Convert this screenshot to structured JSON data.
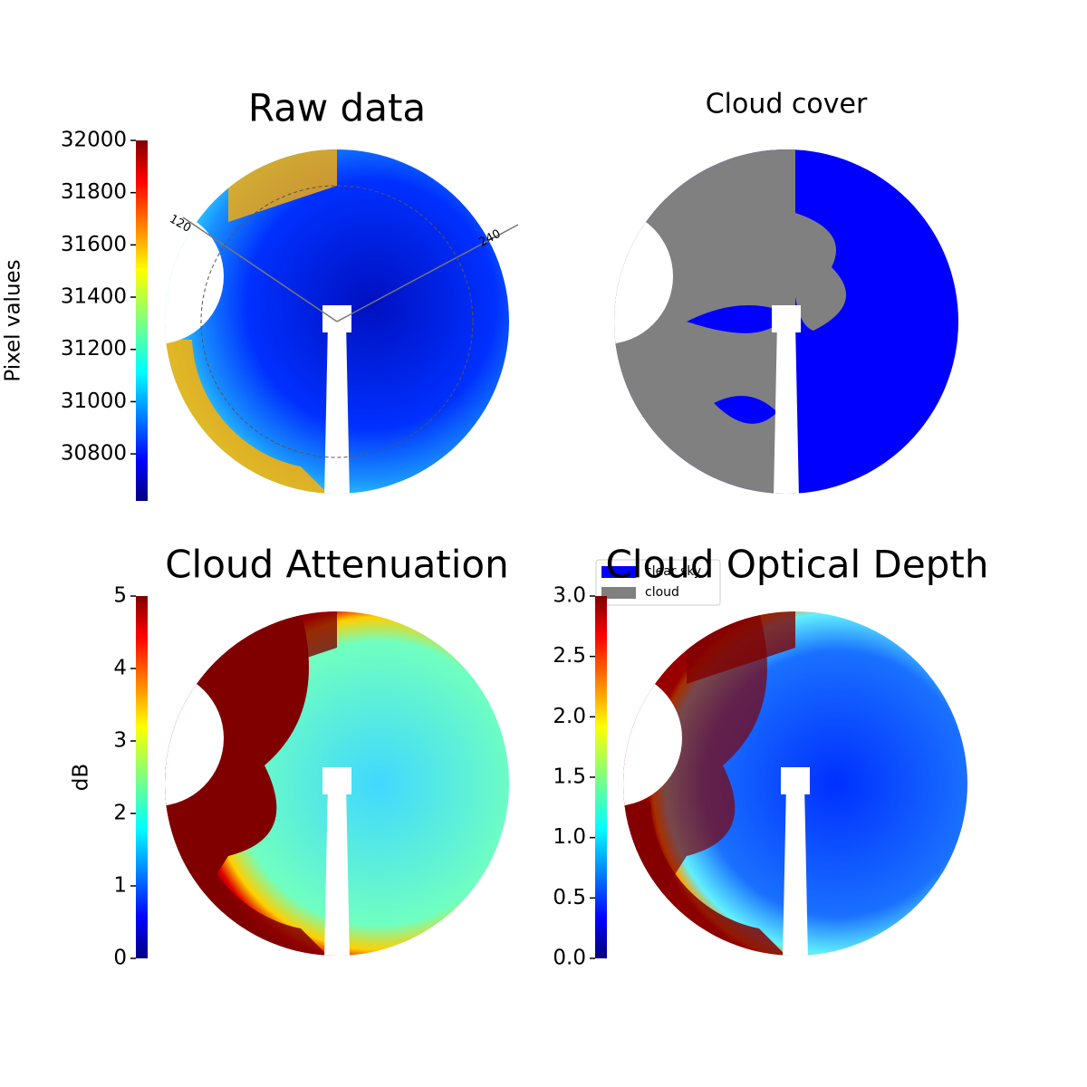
{
  "chart_data": [
    {
      "type": "image",
      "title": "Raw data",
      "title_size": "large",
      "annotations": [
        "120",
        "240"
      ],
      "colorbar": {
        "label": "Pixel values",
        "colormap": "jet",
        "lim": [
          30620,
          32000
        ],
        "ticks": [
          30800,
          31000,
          31200,
          31400,
          31600,
          31800,
          32000
        ]
      }
    },
    {
      "type": "image",
      "title": "Cloud cover",
      "title_size": "small",
      "series": [
        {
          "name": "clear sky",
          "color": "#0000ff"
        },
        {
          "name": "cloud",
          "color": "#808080"
        }
      ]
    },
    {
      "type": "image",
      "title": "Cloud Attenuation",
      "title_size": "large",
      "colorbar": {
        "label": "dB",
        "colormap": "jet",
        "lim": [
          0,
          5
        ],
        "ticks": [
          0,
          1,
          2,
          3,
          4,
          5
        ]
      }
    },
    {
      "type": "image",
      "title": "Cloud Optical Depth",
      "title_size": "large",
      "colorbar": {
        "colormap": "jet",
        "lim": [
          0,
          3
        ],
        "ticks": [
          {
            "value": 0,
            "label": "0.0"
          },
          {
            "value": 0.5,
            "label": "0.5"
          },
          {
            "value": 1,
            "label": "1.0"
          },
          {
            "value": 1.5,
            "label": "1.5"
          },
          {
            "value": 2,
            "label": "2.0"
          },
          {
            "value": 2.5,
            "label": "2.5"
          },
          {
            "value": 3,
            "label": "3.0"
          }
        ]
      }
    }
  ]
}
